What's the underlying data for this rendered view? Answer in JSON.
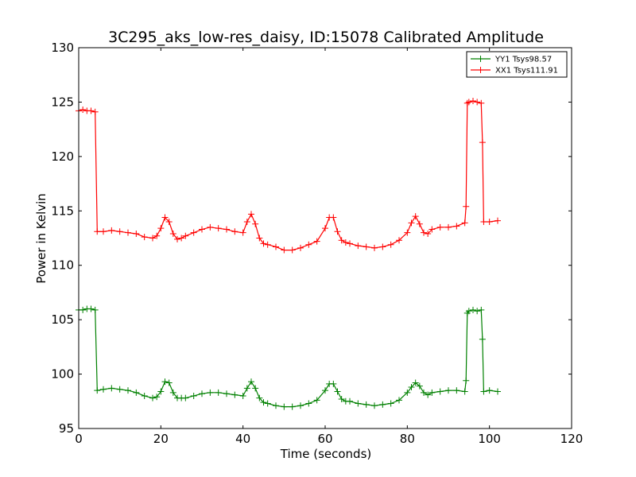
{
  "chart_data": {
    "type": "line",
    "title": "3C295_aks_low-res_daisy, ID:15078 Calibrated Amplitude",
    "xlabel": "Time (seconds)",
    "ylabel": "Power in Kelvin",
    "xlim": [
      0,
      120
    ],
    "ylim": [
      95,
      130
    ],
    "xticks": [
      "0",
      "20",
      "40",
      "60",
      "80",
      "100",
      "120"
    ],
    "yticks": [
      "95",
      "100",
      "105",
      "110",
      "115",
      "120",
      "125",
      "130"
    ],
    "grid": false,
    "legend_position": "top-right",
    "markers": "+",
    "series": [
      {
        "name": "YY1 Tsys98.57",
        "color": "#008000",
        "x": [
          0,
          1,
          2,
          3,
          4,
          4.5,
          6,
          8,
          10,
          12,
          14,
          16,
          18,
          19,
          20,
          21,
          22,
          23,
          24,
          25,
          26,
          28,
          30,
          32,
          34,
          36,
          38,
          40,
          41,
          42,
          43,
          44,
          45,
          46,
          48,
          50,
          52,
          54,
          56,
          58,
          60,
          61,
          62,
          63,
          64,
          65,
          66,
          68,
          70,
          72,
          74,
          76,
          78,
          80,
          81,
          82,
          83,
          84,
          85,
          86,
          88,
          90,
          92,
          94,
          94.3,
          94.6,
          95,
          96,
          97,
          98,
          98.3,
          98.6,
          100,
          102
        ],
        "y": [
          105.9,
          105.9,
          106.0,
          106.0,
          105.9,
          98.5,
          98.6,
          98.7,
          98.6,
          98.5,
          98.3,
          98.0,
          97.8,
          97.9,
          98.4,
          99.3,
          99.2,
          98.3,
          97.8,
          97.8,
          97.8,
          98.0,
          98.2,
          98.3,
          98.3,
          98.2,
          98.1,
          98.0,
          98.7,
          99.3,
          98.7,
          97.8,
          97.4,
          97.3,
          97.1,
          97.0,
          97.0,
          97.1,
          97.3,
          97.6,
          98.5,
          99.1,
          99.1,
          98.4,
          97.7,
          97.5,
          97.5,
          97.3,
          97.2,
          97.1,
          97.2,
          97.3,
          97.6,
          98.3,
          98.8,
          99.2,
          98.9,
          98.3,
          98.1,
          98.3,
          98.4,
          98.5,
          98.5,
          98.4,
          99.4,
          105.6,
          105.8,
          105.9,
          105.8,
          105.9,
          103.2,
          98.4,
          98.5,
          98.4
        ]
      },
      {
        "name": "XX1 Tsys111.91",
        "color": "#ff0000",
        "x": [
          0,
          1,
          2,
          3,
          4,
          4.5,
          6,
          8,
          10,
          12,
          14,
          16,
          18,
          19,
          20,
          21,
          22,
          23,
          24,
          25,
          26,
          28,
          30,
          32,
          34,
          36,
          38,
          40,
          41,
          42,
          43,
          44,
          45,
          46,
          48,
          50,
          52,
          54,
          56,
          58,
          60,
          61,
          62,
          63,
          64,
          65,
          66,
          68,
          70,
          72,
          74,
          76,
          78,
          80,
          81,
          82,
          83,
          84,
          85,
          86,
          88,
          90,
          92,
          94,
          94.3,
          94.6,
          95,
          96,
          97,
          98,
          98.3,
          98.6,
          100,
          102
        ],
        "y": [
          124.2,
          124.3,
          124.2,
          124.2,
          124.1,
          113.1,
          113.1,
          113.2,
          113.1,
          113.0,
          112.9,
          112.6,
          112.5,
          112.7,
          113.4,
          114.4,
          114.0,
          112.9,
          112.4,
          112.5,
          112.7,
          113.0,
          113.3,
          113.5,
          113.4,
          113.3,
          113.1,
          113.0,
          114.0,
          114.7,
          113.8,
          112.5,
          112.0,
          111.9,
          111.7,
          111.4,
          111.4,
          111.6,
          111.9,
          112.2,
          113.4,
          114.4,
          114.4,
          113.1,
          112.3,
          112.1,
          112.0,
          111.8,
          111.7,
          111.6,
          111.7,
          111.9,
          112.3,
          113.0,
          113.9,
          114.5,
          113.8,
          113.0,
          112.9,
          113.3,
          113.5,
          113.5,
          113.6,
          113.9,
          115.4,
          124.9,
          125.0,
          125.1,
          125.0,
          124.9,
          121.3,
          114.0,
          114.0,
          114.1
        ]
      }
    ]
  }
}
